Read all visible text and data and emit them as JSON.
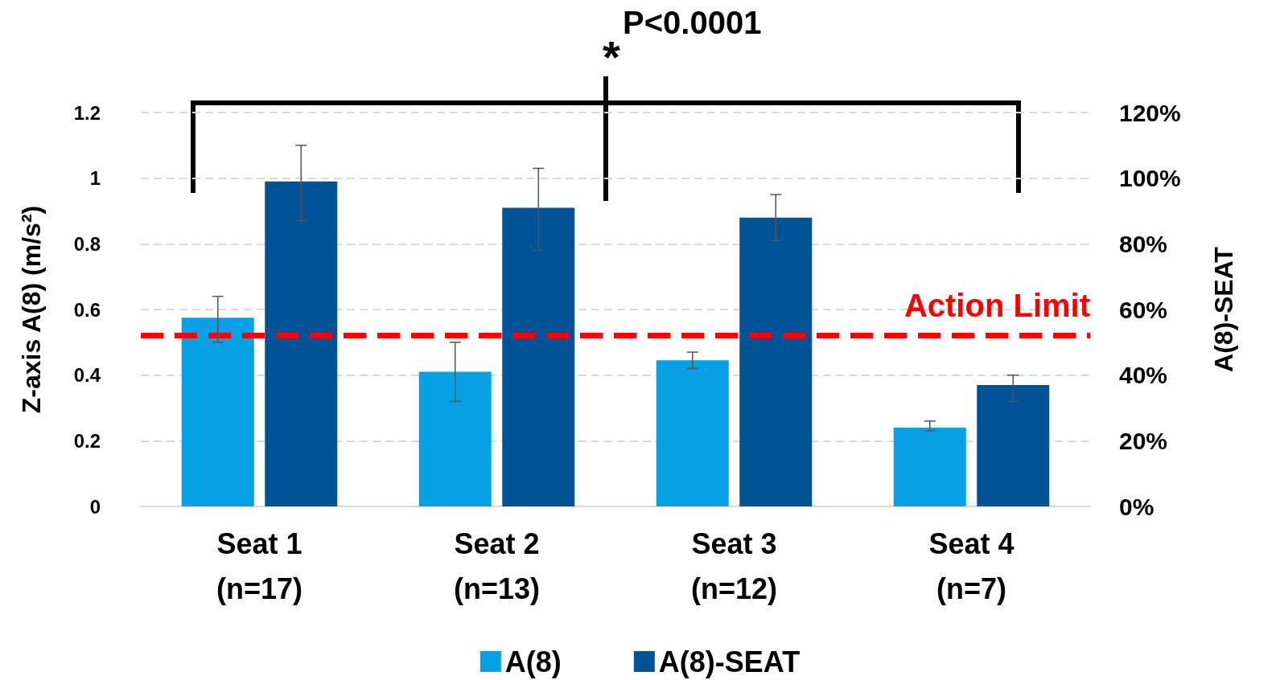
{
  "chart_data": {
    "type": "bar",
    "categories": [
      "Seat 1\n(n=17)",
      "Seat 2\n(n=13)",
      "Seat 3\n(n=12)",
      "Seat 4\n(n=7)"
    ],
    "series": [
      {
        "name": "A(8)",
        "color": "#06a0e4",
        "values": [
          0.575,
          0.41,
          0.445,
          0.24
        ],
        "errors": [
          [
            0.5,
            0.64
          ],
          [
            0.32,
            0.5
          ],
          [
            0.42,
            0.47
          ],
          [
            0.23,
            0.26
          ]
        ]
      },
      {
        "name": "A(8)-SEAT",
        "color": "#005397",
        "values": [
          0.99,
          0.91,
          0.88,
          0.37
        ],
        "errors": [
          [
            0.87,
            1.1
          ],
          [
            0.78,
            1.03
          ],
          [
            0.81,
            0.95
          ],
          [
            0.32,
            0.4
          ]
        ]
      }
    ],
    "ylabel": "Z-axis A(8) (m/s²)",
    "y2label": "A(8)-SEAT",
    "ylim": [
      0,
      1.2
    ],
    "yticks": [
      0,
      0.2,
      0.4,
      0.6,
      0.8,
      1,
      1.2
    ],
    "y2lim": [
      0,
      120
    ],
    "y2ticks": [
      {
        "value": 0,
        "label": "0%"
      },
      {
        "value": 20,
        "label": "20%"
      },
      {
        "value": 40,
        "label": "40%"
      },
      {
        "value": 60,
        "label": "60%"
      },
      {
        "value": 80,
        "label": "80%"
      },
      {
        "value": 100,
        "label": "100%"
      },
      {
        "value": 120,
        "label": "120%"
      }
    ],
    "ref_lines": [
      {
        "axis": "y",
        "value": 0.52,
        "label": "Action Limit",
        "color": "#ff0000",
        "line_style": "dashed"
      }
    ],
    "annotations": [
      "*",
      "P<0.0001"
    ],
    "grid": "y",
    "legend": "bottom"
  }
}
